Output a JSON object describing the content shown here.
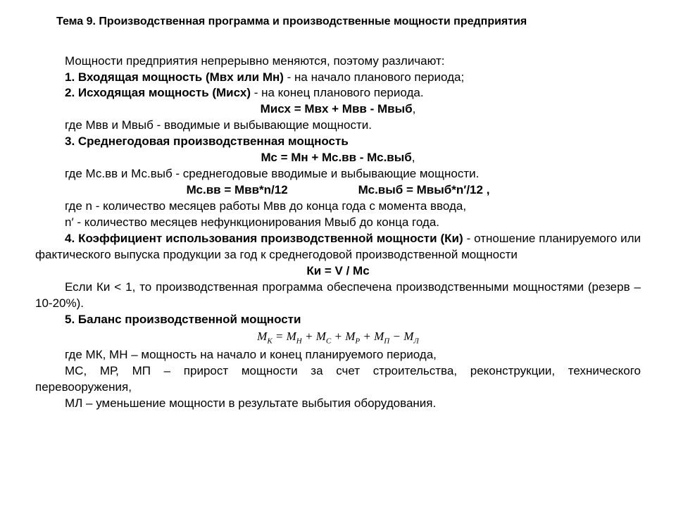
{
  "title": "Тема 9. Производственная программа и производственные мощности предприятия",
  "p_intro": "Мощности предприятия непрерывно меняются, поэтому различают:",
  "p1_head": "1. Входящая мощность (Мвх или Мн)",
  "p1_tail": " - на начало планового периода;",
  "p2_head": "2. Исходящая мощность (Мисх)",
  "p2_tail": " - на конец планового периода.",
  "f1": "Мисх = Мвх + Мвв - Мвыб",
  "f1_comma": ",",
  "p_where1": "где Мвв и Мвыб - вводимые и выбывающие мощности.",
  "p3_head": "3. Среднегодовая производственная мощность",
  "f2": "Мс = Мн + Мс.вв - Мс.выб",
  "f2_comma": ",",
  "p_where2": "где Мс.вв и Мс.выб - среднегодовые вводимые и выбывающие мощности.",
  "f3a": "Мс.вв = Мвв*n/12",
  "f3b": "Мс.выб = Мвыб*n′/12 ,",
  "p_where3a": "где n - количество месяцев работы Мвв до конца года с момента ввода,",
  "p_where3b": "n′ - количество месяцев нефункционирования Мвыб до конца года.",
  "p4_head": "4. Коэффициент использования производственной мощности (Ки)",
  "p4_tail": " - отношение планируемого или фактического выпуска продукции за год к среднегодовой производственной мощности",
  "f4": "Ки = V / Mc",
  "p_ki": "Если Ки < 1, то производственная программа обеспечена производственными мощностями (резерв – 10-20%).",
  "p5_head": "5. Баланс производственной мощности",
  "eq_prefix": "M",
  "eq_s1": "К",
  "eq_eq": " = ",
  "eq_s2": "Н",
  "eq_plus": " + ",
  "eq_s3": "С",
  "eq_s4": "Р",
  "eq_s5": "П",
  "eq_minus": " − ",
  "eq_s6": "Л",
  "p_where5a": "где МК,  МН – мощность на начало и конец планируемого периода,",
  "p_where5b": "МС, МР, МП – прирост мощности за счет строительства, реконструкции, технического перевооружения,",
  "p_where5c": "МЛ – уменьшение мощности в результате выбытия оборудования."
}
